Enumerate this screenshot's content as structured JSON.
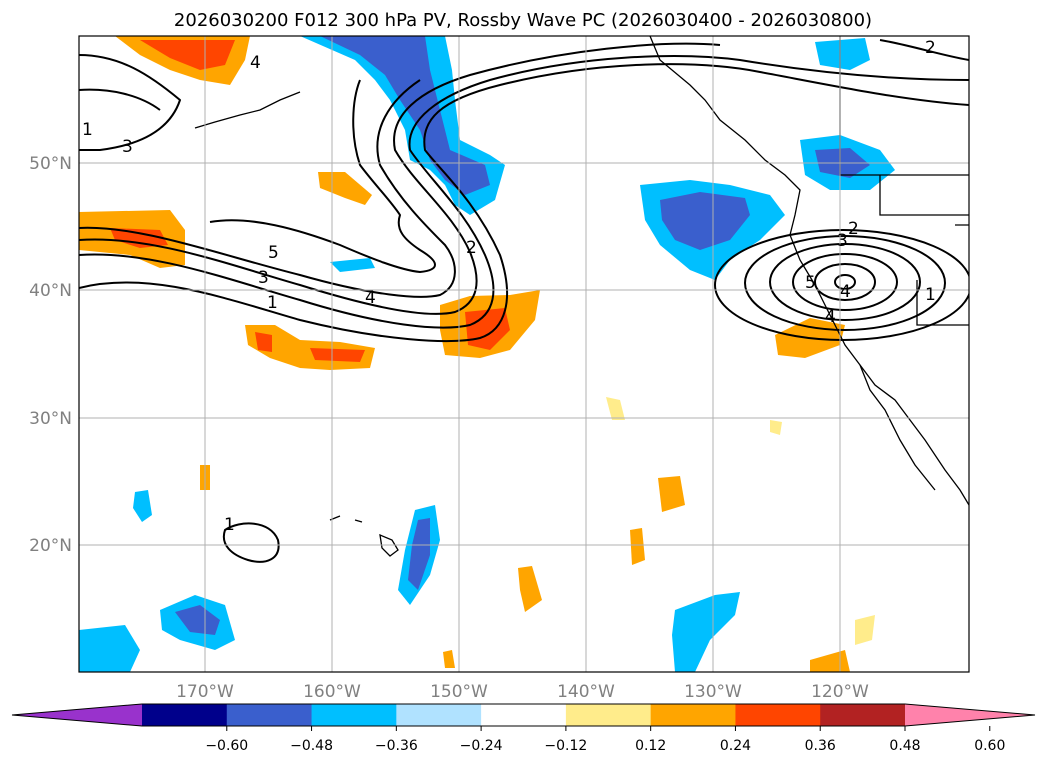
{
  "title": "2026030200 F012 300 hPa PV, Rossby Wave PC (2026030400 - 2026030800)",
  "axes": {
    "lat_labels": [
      "50°N",
      "40°N",
      "30°N",
      "20°N"
    ],
    "lon_labels": [
      "170°W",
      "160°W",
      "150°W",
      "140°W",
      "130°W",
      "120°W"
    ]
  },
  "colorbar": {
    "tick_labels": [
      "−0.60",
      "−0.48",
      "−0.36",
      "−0.24",
      "−0.12",
      "0.12",
      "0.24",
      "0.36",
      "0.48",
      "0.60"
    ],
    "colors": [
      "#9932cc",
      "#00008b",
      "#3a5fcd",
      "#00bfff",
      "#b0e2ff",
      "#ffffff",
      "#ffec8b",
      "#ffa500",
      "#ff4500",
      "#b22222",
      "#ff82ab"
    ]
  },
  "contour_labels": [
    "4",
    "5",
    "3",
    "2",
    "2",
    "3",
    "5",
    "4",
    "3",
    "1",
    "4",
    "2",
    "1",
    "4",
    "1",
    "1"
  ]
}
